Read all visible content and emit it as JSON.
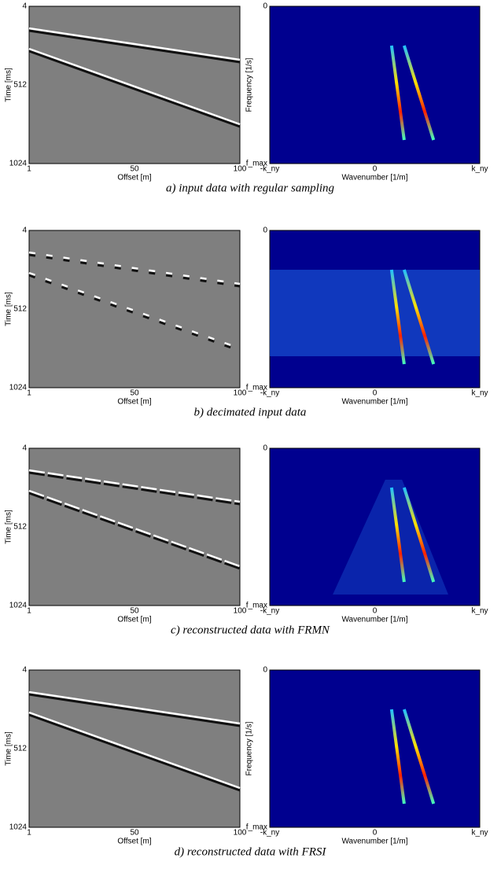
{
  "figures": [
    {
      "caption": "a) input data with regular sampling",
      "left": {
        "ylabel": "Time [ms]",
        "xlabel": "Offset [m]",
        "yticks": [
          "4",
          "512",
          "1024"
        ],
        "xticks": [
          "1",
          "50",
          "100"
        ]
      },
      "right": {
        "ylabel": "Frequency [1/s]",
        "xlabel": "Wavenumber [1/m]",
        "yticks": [
          "0",
          "f_max"
        ],
        "xticks": [
          "-k_ny",
          "0",
          "k_ny"
        ]
      }
    },
    {
      "caption": "b) decimated input data",
      "left": {
        "ylabel": "Time [ms]",
        "xlabel": "Offset [m]",
        "yticks": [
          "4",
          "512",
          "1024"
        ],
        "xticks": [
          "1",
          "50",
          "100"
        ]
      },
      "right": {
        "xlabel": "Wavenumber [1/m]",
        "yticks": [
          "0",
          "f_max"
        ],
        "xticks": [
          "-k_ny",
          "0",
          "k_ny"
        ]
      }
    },
    {
      "caption": "c) reconstructed data with FRMN",
      "left": {
        "ylabel": "Time [ms]",
        "xlabel": "Offset [m]",
        "yticks": [
          "4",
          "512",
          "1024"
        ],
        "xticks": [
          "1",
          "50",
          "100"
        ]
      },
      "right": {
        "xlabel": "Wavenumber [1/m]",
        "yticks": [
          "0",
          "f_max"
        ],
        "xticks": [
          "-k_ny",
          "0",
          "k_ny"
        ]
      }
    },
    {
      "caption": "d) reconstructed data with FRSI",
      "left": {
        "ylabel": "Time [ms]",
        "xlabel": "Offset [m]",
        "yticks": [
          "4",
          "512",
          "1024"
        ],
        "xticks": [
          "1",
          "50",
          "100"
        ]
      },
      "right": {
        "ylabel": "Frequency [1/s]",
        "xlabel": "Wavenumber [1/m]",
        "yticks": [
          "0",
          "f_max"
        ],
        "xticks": [
          "-k_ny",
          "0",
          "k_ny"
        ]
      }
    }
  ]
}
